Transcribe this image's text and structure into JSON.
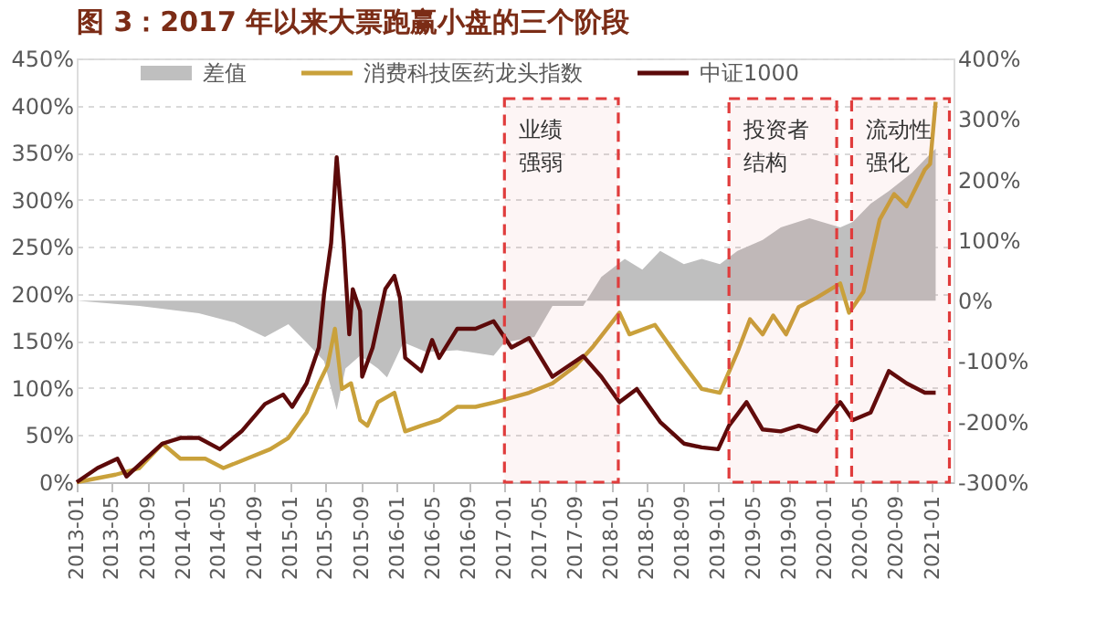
{
  "chart_data": {
    "type": "line",
    "title": "图 3：2017 年以来大票跑赢小盘的三个阶段",
    "xlim": [
      "2013-01-01",
      "2021-03-15"
    ],
    "xticks": [
      "2013-01",
      "2013-05",
      "2013-09",
      "2014-01",
      "2014-05",
      "2014-09",
      "2015-01",
      "2015-05",
      "2015-09",
      "2016-01",
      "2016-05",
      "2016-09",
      "2017-01",
      "2017-05",
      "2017-09",
      "2018-01",
      "2018-05",
      "2018-09",
      "2019-01",
      "2019-05",
      "2019-09",
      "2020-01",
      "2020-05",
      "2020-09",
      "2021-01"
    ],
    "ylim": [
      0,
      450
    ],
    "yticks": [
      {
        "value": 0,
        "label": "0%"
      },
      {
        "value": 50,
        "label": "50%"
      },
      {
        "value": 100,
        "label": "100%"
      },
      {
        "value": 150,
        "label": "150%"
      },
      {
        "value": 200,
        "label": "200%"
      },
      {
        "value": 250,
        "label": "250%"
      },
      {
        "value": 300,
        "label": "300%"
      },
      {
        "value": 350,
        "label": "350%"
      },
      {
        "value": 400,
        "label": "400%"
      },
      {
        "value": 450,
        "label": "450%"
      }
    ],
    "y2lim": [
      -300,
      400
    ],
    "y2ticks": [
      {
        "value": -300,
        "label": "-300%"
      },
      {
        "value": -200,
        "label": "-200%"
      },
      {
        "value": -100,
        "label": "-100%"
      },
      {
        "value": 0,
        "label": "0%"
      },
      {
        "value": 100,
        "label": "100%"
      },
      {
        "value": 200,
        "label": "200%"
      },
      {
        "value": 300,
        "label": "300%"
      },
      {
        "value": 400,
        "label": "400%"
      }
    ],
    "grid": "y",
    "legend": "top",
    "series": [
      {
        "name": "差值",
        "type": "area",
        "axis": "y2",
        "color": "#bfbfbf",
        "x": [
          "2013-01-01",
          "2013-08-03",
          "2014-02-22",
          "2014-06-23",
          "2014-10-06",
          "2014-12-25",
          "2015-02-25",
          "2015-04-26",
          "2015-06-08",
          "2015-07-08",
          "2015-08-27",
          "2015-10-27",
          "2015-11-27",
          "2016-01-22",
          "2016-04-10",
          "2016-07-24",
          "2016-11-25",
          "2017-01-01",
          "2017-04-13",
          "2017-06-14",
          "2017-09-27",
          "2017-11-28",
          "2018-02-16",
          "2018-04-17",
          "2018-06-17",
          "2018-09-06",
          "2018-11-06",
          "2019-01-07",
          "2019-03-08",
          "2019-06-02",
          "2019-08-03",
          "2019-11-09",
          "2020-02-22",
          "2020-04-05",
          "2020-06-05",
          "2020-08-06",
          "2020-10-24",
          "2020-12-25",
          "2021-01-13"
        ],
        "values": [
          0,
          -9,
          -21,
          -36,
          -60,
          -39,
          -69,
          -100,
          -181,
          -112,
          -91,
          -112,
          -127,
          -69,
          -85,
          -82,
          -91,
          -69,
          -60,
          -9,
          -9,
          39,
          69,
          51,
          82,
          60,
          69,
          60,
          82,
          100,
          121,
          136,
          121,
          130,
          160,
          181,
          211,
          242,
          251
        ]
      },
      {
        "name": "消费科技医药龙头指数",
        "color": "#c9a13b",
        "x": [
          "2013-01-01",
          "2013-05-14",
          "2013-08-03",
          "2013-10-21",
          "2013-12-21",
          "2014-03-16",
          "2014-05-17",
          "2014-08-05",
          "2014-10-24",
          "2014-12-25",
          "2015-02-25",
          "2015-04-08",
          "2015-05-08",
          "2015-06-02",
          "2015-06-26",
          "2015-07-27",
          "2015-08-27",
          "2015-09-21",
          "2015-10-27",
          "2015-12-22",
          "2016-01-28",
          "2016-03-23",
          "2016-05-23",
          "2016-07-24",
          "2016-09-24",
          "2016-12-01",
          "2017-03-26",
          "2017-06-14",
          "2017-09-03",
          "2017-10-28",
          "2018-01-29",
          "2018-03-04",
          "2018-05-30",
          "2018-08-18",
          "2018-11-06",
          "2019-01-07",
          "2019-03-08",
          "2019-04-20",
          "2019-06-02",
          "2019-07-08",
          "2019-08-21",
          "2019-10-03",
          "2019-12-04",
          "2020-02-22",
          "2020-03-23",
          "2020-05-11",
          "2020-07-06",
          "2020-08-24",
          "2020-10-06",
          "2020-12-07",
          "2020-12-25",
          "2021-01-13"
        ],
        "values": [
          0,
          8,
          15,
          41,
          25,
          25,
          15,
          25,
          35,
          47,
          74,
          105,
          124,
          163,
          99,
          105,
          66,
          60,
          85,
          95,
          54,
          60,
          66,
          80,
          80,
          85,
          95,
          105,
          124,
          143,
          180,
          157,
          167,
          132,
          99,
          95,
          138,
          173,
          157,
          177,
          157,
          186,
          196,
          211,
          180,
          202,
          279,
          306,
          293,
          332,
          338,
          404
        ]
      },
      {
        "name": "中证1000",
        "color": "#5c0a0a",
        "x": [
          "2013-01-01",
          "2013-03-13",
          "2013-05-20",
          "2013-06-20",
          "2013-09-15",
          "2013-10-21",
          "2013-12-21",
          "2014-02-22",
          "2014-05-05",
          "2014-07-18",
          "2014-10-06",
          "2014-12-07",
          "2015-01-07",
          "2015-02-25",
          "2015-04-08",
          "2015-04-26",
          "2015-05-20",
          "2015-06-08",
          "2015-07-02",
          "2015-07-21",
          "2015-08-02",
          "2015-08-27",
          "2015-09-03",
          "2015-10-09",
          "2015-11-21",
          "2015-12-22",
          "2016-01-10",
          "2016-01-28",
          "2016-03-23",
          "2016-04-29",
          "2016-05-23",
          "2016-07-24",
          "2016-09-24",
          "2016-11-25",
          "2017-01-25",
          "2017-03-26",
          "2017-06-14",
          "2017-09-27",
          "2017-11-28",
          "2018-01-29",
          "2018-03-29",
          "2018-06-17",
          "2018-09-06",
          "2018-11-06",
          "2019-01-01",
          "2019-02-07",
          "2019-04-08",
          "2019-06-02",
          "2019-08-03",
          "2019-10-03",
          "2019-12-04",
          "2020-02-22",
          "2020-04-05",
          "2020-06-05",
          "2020-08-06",
          "2020-10-06",
          "2020-12-07",
          "2021-01-13"
        ],
        "values": [
          0,
          15,
          25,
          6,
          31,
          41,
          47,
          47,
          35,
          54,
          83,
          93,
          80,
          105,
          143,
          200,
          254,
          345,
          254,
          157,
          205,
          182,
          112,
          143,
          205,
          219,
          196,
          132,
          118,
          151,
          132,
          163,
          163,
          171,
          143,
          153,
          112,
          134,
          112,
          85,
          99,
          64,
          41,
          37,
          35,
          60,
          85,
          56,
          54,
          60,
          54,
          85,
          66,
          74,
          118,
          105,
          95,
          95
        ]
      }
    ],
    "bands": [
      {
        "axis": "x",
        "from": "2017-01-01",
        "to": "2018-01-25",
        "label": "业绩强弱",
        "color": "#e03c3c"
      },
      {
        "axis": "x",
        "from": "2019-02-07",
        "to": "2020-02-10",
        "label": "投资者结构",
        "color": "#e03c3c"
      },
      {
        "axis": "x",
        "from": "2020-04-01",
        "to": "2021-03-01",
        "label": "流动性强化",
        "color": "#e03c3c"
      }
    ]
  }
}
